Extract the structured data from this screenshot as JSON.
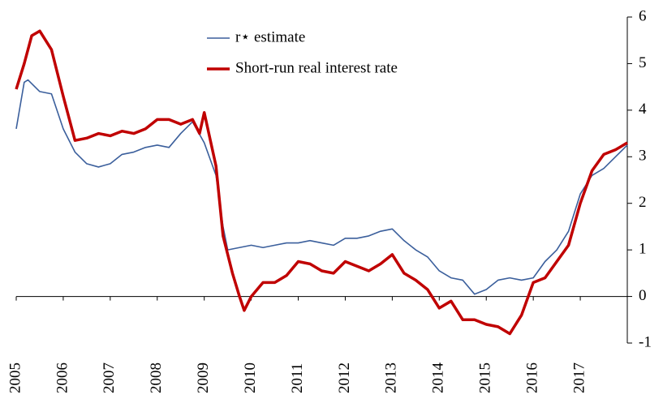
{
  "chart_data": {
    "type": "line",
    "xlim": [
      2005,
      2018
    ],
    "xticks": [
      2005,
      2006,
      2007,
      2008,
      2009,
      2010,
      2011,
      2012,
      2013,
      2014,
      2015,
      2016,
      2017
    ],
    "ylim": [
      -1,
      6
    ],
    "yticks": [
      -1,
      0,
      1,
      2,
      3,
      4,
      5,
      6
    ],
    "grid": false,
    "legend": "top",
    "series": [
      {
        "name": "r⋆ estimate",
        "color": "#3b5f9c",
        "width": 1.6,
        "x": [
          2005,
          2005.17,
          2005.25,
          2005.5,
          2005.75,
          2006,
          2006.25,
          2006.5,
          2006.75,
          2007,
          2007.25,
          2007.5,
          2007.75,
          2008,
          2008.25,
          2008.5,
          2008.75,
          2009,
          2009.25,
          2009.4,
          2009.5,
          2009.75,
          2010,
          2010.25,
          2010.5,
          2010.75,
          2011,
          2011.25,
          2011.5,
          2011.75,
          2012,
          2012.25,
          2012.5,
          2012.75,
          2013,
          2013.25,
          2013.5,
          2013.75,
          2014,
          2014.25,
          2014.5,
          2014.75,
          2015,
          2015.25,
          2015.5,
          2015.75,
          2016,
          2016.25,
          2016.5,
          2016.75,
          2017,
          2017.25,
          2017.5,
          2017.75,
          2018
        ],
        "values": [
          3.6,
          4.6,
          4.65,
          4.4,
          4.35,
          3.6,
          3.1,
          2.85,
          2.78,
          2.85,
          3.05,
          3.1,
          3.2,
          3.25,
          3.2,
          3.5,
          3.75,
          3.3,
          2.6,
          1.5,
          1.0,
          1.05,
          1.1,
          1.05,
          1.1,
          1.15,
          1.15,
          1.2,
          1.15,
          1.1,
          1.25,
          1.25,
          1.3,
          1.4,
          1.45,
          1.2,
          1.0,
          0.85,
          0.55,
          0.4,
          0.35,
          0.05,
          0.15,
          0.35,
          0.4,
          0.35,
          0.4,
          0.75,
          1.0,
          1.4,
          2.2,
          2.6,
          2.75,
          3.0,
          3.25
        ]
      },
      {
        "name": "Short-run real interest rate",
        "color": "#c00000",
        "width": 3.5,
        "x": [
          2005,
          2005.17,
          2005.33,
          2005.5,
          2005.75,
          2006,
          2006.25,
          2006.5,
          2006.75,
          2007,
          2007.25,
          2007.5,
          2007.75,
          2008,
          2008.25,
          2008.5,
          2008.75,
          2008.9,
          2009,
          2009.25,
          2009.4,
          2009.6,
          2009.75,
          2009.85,
          2010,
          2010.25,
          2010.5,
          2010.75,
          2011,
          2011.25,
          2011.5,
          2011.75,
          2012,
          2012.25,
          2012.5,
          2012.75,
          2013,
          2013.25,
          2013.5,
          2013.75,
          2014,
          2014.25,
          2014.5,
          2014.75,
          2015,
          2015.25,
          2015.5,
          2015.75,
          2016,
          2016.25,
          2016.5,
          2016.75,
          2017,
          2017.25,
          2017.5,
          2017.75,
          2018
        ],
        "values": [
          4.45,
          5.0,
          5.6,
          5.7,
          5.3,
          4.3,
          3.35,
          3.4,
          3.5,
          3.45,
          3.55,
          3.5,
          3.6,
          3.8,
          3.8,
          3.7,
          3.8,
          3.5,
          3.95,
          2.8,
          1.3,
          0.5,
          0.0,
          -0.3,
          0.0,
          0.3,
          0.3,
          0.45,
          0.75,
          0.7,
          0.55,
          0.5,
          0.75,
          0.65,
          0.55,
          0.7,
          0.9,
          0.5,
          0.35,
          0.15,
          -0.25,
          -0.1,
          -0.5,
          -0.5,
          -0.6,
          -0.65,
          -0.8,
          -0.4,
          0.3,
          0.4,
          0.75,
          1.1,
          2.0,
          2.7,
          3.05,
          3.15,
          3.3
        ]
      }
    ]
  }
}
